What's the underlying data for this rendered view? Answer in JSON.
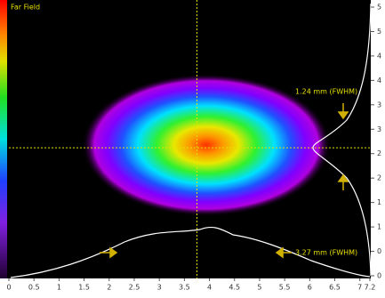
{
  "chart_data": {
    "type": "heatmap",
    "title": "Far Field",
    "annotations": [
      "1.24 mm (FWHM)",
      "3.27 mm (FWHM)"
    ],
    "xlim": [
      0,
      7.2
    ],
    "xticks": [
      0,
      0.5,
      1,
      1.5,
      2,
      2.5,
      3,
      3.5,
      4,
      4.5,
      5,
      5.5,
      6,
      6.5,
      7,
      7.2
    ],
    "ylim": [
      0,
      5.5
    ],
    "yticks": [
      {
        "value": 0,
        "label": "0"
      },
      {
        "value": 0.5,
        "label": "0"
      },
      {
        "value": 1,
        "label": "1"
      },
      {
        "value": 1.5,
        "label": "1"
      },
      {
        "value": 2,
        "label": "2"
      },
      {
        "value": 2.5,
        "label": "2"
      },
      {
        "value": 3,
        "label": "3"
      },
      {
        "value": 3.5,
        "label": "3"
      },
      {
        "value": 4,
        "label": "4"
      },
      {
        "value": 4.5,
        "label": "4"
      },
      {
        "value": 5,
        "label": "5"
      },
      {
        "value": 5.5,
        "label": "5"
      }
    ],
    "crosshair": {
      "x": 3.75,
      "y": 2.62
    },
    "crosshair_color": "#e8e000"
  }
}
